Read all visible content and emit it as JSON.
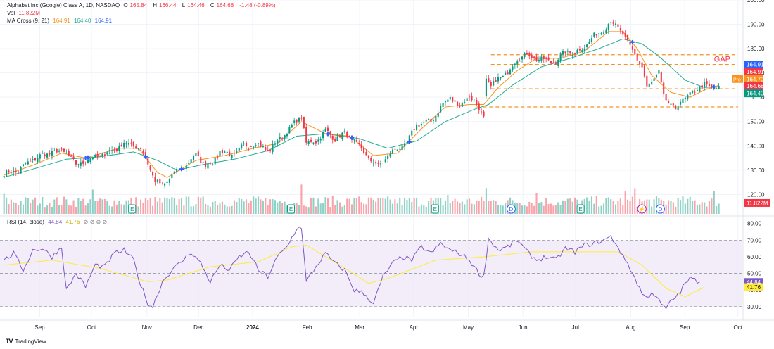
{
  "legend": {
    "title": "Alphabet Inc (Google) Class A, 1D, NASDAQ",
    "open_label": "O",
    "open": "165.84",
    "high_label": "H",
    "high": "166.44",
    "low_label": "L",
    "low": "164.46",
    "close_label": "C",
    "close": "164.68",
    "change": "-1.48 (-0.89%)",
    "vol_label": "Vol",
    "vol": "11.822M",
    "ma_label": "MA Cross (9, 21)",
    "ma_fast": "164.91",
    "ma_slow": "164.40",
    "ma_third": "164.91",
    "rsi_label": "RSI (14, close)",
    "rsi": "44.84",
    "rsi_ma": "41.76",
    "rsi_icons": "⊘ ⊘ ⊘ ⊘"
  },
  "watermark": {
    "logo": "TV",
    "text": "TradingView"
  },
  "chart_data": {
    "type": "candlestick",
    "price_axis": {
      "ylim": [
        112,
        200
      ],
      "ticks": [
        120,
        130,
        140,
        150,
        160,
        170,
        180,
        190,
        200
      ]
    },
    "rsi_axis": {
      "ylim": [
        24,
        82
      ],
      "ticks": [
        30,
        40,
        50,
        60,
        70,
        80
      ],
      "bands": [
        30,
        50,
        70
      ]
    },
    "x_ticks": [
      {
        "label": "Sep",
        "t": 0.05
      },
      {
        "label": "Oct",
        "t": 0.12
      },
      {
        "label": "Nov",
        "t": 0.195
      },
      {
        "label": "Dec",
        "t": 0.265
      },
      {
        "label": "2024",
        "t": 0.338
      },
      {
        "label": "Feb",
        "t": 0.412
      },
      {
        "label": "Mar",
        "t": 0.483
      },
      {
        "label": "Apr",
        "t": 0.556
      },
      {
        "label": "May",
        "t": 0.63
      },
      {
        "label": "Jun",
        "t": 0.704
      },
      {
        "label": "Jul",
        "t": 0.775
      },
      {
        "label": "Aug",
        "t": 0.85
      },
      {
        "label": "Sep",
        "t": 0.923
      },
      {
        "label": "Oct",
        "t": 0.995
      }
    ],
    "close_anchors": [
      [
        0,
        128.5
      ],
      [
        6,
        130
      ],
      [
        12,
        134.5
      ],
      [
        20,
        137.5
      ],
      [
        26,
        137.5
      ],
      [
        30,
        132
      ],
      [
        34,
        134
      ],
      [
        40,
        136
      ],
      [
        45,
        138
      ],
      [
        50,
        141
      ],
      [
        54,
        140.5
      ],
      [
        57,
        138.5
      ],
      [
        60,
        133
      ],
      [
        63,
        125.5
      ],
      [
        66,
        123.5
      ],
      [
        70,
        128
      ],
      [
        75,
        131
      ],
      [
        80,
        136.5
      ],
      [
        84,
        132
      ],
      [
        87,
        133
      ],
      [
        90,
        138
      ],
      [
        95,
        136
      ],
      [
        100,
        140
      ],
      [
        105,
        141
      ],
      [
        110,
        138
      ],
      [
        115,
        143
      ],
      [
        120,
        148
      ],
      [
        124,
        152.5
      ],
      [
        126,
        141
      ],
      [
        130,
        142
      ],
      [
        134,
        146
      ],
      [
        138,
        143
      ],
      [
        142,
        145
      ],
      [
        146,
        142
      ],
      [
        152,
        135
      ],
      [
        156,
        131.5
      ],
      [
        160,
        136
      ],
      [
        164,
        139
      ],
      [
        168,
        141
      ],
      [
        172,
        149
      ],
      [
        178,
        150
      ],
      [
        182,
        156
      ],
      [
        186,
        160
      ],
      [
        190,
        156
      ],
      [
        194,
        161
      ],
      [
        198,
        155
      ],
      [
        200,
        152
      ],
      [
        201,
        167.5
      ],
      [
        203,
        164
      ],
      [
        206,
        168
      ],
      [
        210,
        170
      ],
      [
        214,
        176
      ],
      [
        218,
        177.5
      ],
      [
        222,
        176
      ],
      [
        226,
        175
      ],
      [
        230,
        174.5
      ],
      [
        234,
        179
      ],
      [
        238,
        178
      ],
      [
        242,
        181
      ],
      [
        246,
        185
      ],
      [
        250,
        188
      ],
      [
        253,
        191
      ],
      [
        256,
        189
      ],
      [
        258,
        186
      ],
      [
        260,
        182
      ],
      [
        263,
        178
      ],
      [
        266,
        172
      ],
      [
        268,
        164
      ],
      [
        271,
        168
      ],
      [
        273,
        170
      ],
      [
        275,
        160
      ],
      [
        278,
        157
      ],
      [
        280,
        155
      ],
      [
        282,
        158
      ],
      [
        285,
        161
      ],
      [
        288,
        162
      ],
      [
        290,
        164
      ],
      [
        292,
        166
      ],
      [
        295,
        163
      ],
      [
        298,
        164.68
      ]
    ],
    "ma_fast_anchors": [
      [
        0,
        128
      ],
      [
        12,
        132
      ],
      [
        24,
        137
      ],
      [
        34,
        135
      ],
      [
        48,
        139
      ],
      [
        56,
        139
      ],
      [
        64,
        129
      ],
      [
        68,
        127
      ],
      [
        80,
        134
      ],
      [
        92,
        136
      ],
      [
        104,
        139
      ],
      [
        114,
        141
      ],
      [
        124,
        150
      ],
      [
        134,
        145
      ],
      [
        144,
        144
      ],
      [
        154,
        136
      ],
      [
        164,
        137
      ],
      [
        174,
        147
      ],
      [
        184,
        156
      ],
      [
        194,
        157
      ],
      [
        200,
        157
      ],
      [
        206,
        164
      ],
      [
        214,
        171
      ],
      [
        222,
        176
      ],
      [
        232,
        176
      ],
      [
        242,
        179
      ],
      [
        252,
        187
      ],
      [
        258,
        187
      ],
      [
        264,
        180
      ],
      [
        270,
        169
      ],
      [
        278,
        162
      ],
      [
        286,
        160
      ],
      [
        292,
        163
      ],
      [
        298,
        164.91
      ]
    ],
    "ma_slow_anchors": [
      [
        0,
        127
      ],
      [
        14,
        131
      ],
      [
        26,
        134.5
      ],
      [
        40,
        135.5
      ],
      [
        54,
        137.5
      ],
      [
        64,
        134
      ],
      [
        72,
        130
      ],
      [
        84,
        132.5
      ],
      [
        96,
        134.5
      ],
      [
        110,
        138
      ],
      [
        122,
        144
      ],
      [
        134,
        145
      ],
      [
        148,
        143
      ],
      [
        160,
        139
      ],
      [
        172,
        142
      ],
      [
        184,
        150
      ],
      [
        196,
        155
      ],
      [
        202,
        157
      ],
      [
        212,
        165
      ],
      [
        224,
        172.5
      ],
      [
        236,
        176
      ],
      [
        248,
        180
      ],
      [
        258,
        184
      ],
      [
        266,
        182
      ],
      [
        274,
        176
      ],
      [
        284,
        167
      ],
      [
        292,
        164
      ],
      [
        298,
        164.4
      ]
    ],
    "rsi_anchors": [
      [
        0,
        58
      ],
      [
        4,
        62
      ],
      [
        8,
        52
      ],
      [
        12,
        64
      ],
      [
        16,
        65
      ],
      [
        20,
        60
      ],
      [
        24,
        66
      ],
      [
        26,
        40
      ],
      [
        30,
        50
      ],
      [
        34,
        42
      ],
      [
        38,
        55
      ],
      [
        42,
        54
      ],
      [
        46,
        62
      ],
      [
        50,
        64
      ],
      [
        54,
        58
      ],
      [
        57,
        43
      ],
      [
        60,
        32
      ],
      [
        62,
        30
      ],
      [
        66,
        45
      ],
      [
        70,
        52
      ],
      [
        74,
        57
      ],
      [
        78,
        63
      ],
      [
        82,
        56
      ],
      [
        86,
        45
      ],
      [
        90,
        55
      ],
      [
        94,
        52
      ],
      [
        98,
        60
      ],
      [
        102,
        63
      ],
      [
        106,
        52
      ],
      [
        110,
        48
      ],
      [
        114,
        60
      ],
      [
        118,
        66
      ],
      [
        122,
        77
      ],
      [
        124,
        78
      ],
      [
        126,
        45
      ],
      [
        130,
        54
      ],
      [
        134,
        62
      ],
      [
        138,
        56
      ],
      [
        142,
        52
      ],
      [
        146,
        40
      ],
      [
        150,
        38
      ],
      [
        154,
        32
      ],
      [
        158,
        48
      ],
      [
        162,
        56
      ],
      [
        166,
        60
      ],
      [
        170,
        58
      ],
      [
        174,
        66
      ],
      [
        178,
        62
      ],
      [
        182,
        68
      ],
      [
        186,
        64
      ],
      [
        190,
        62
      ],
      [
        194,
        58
      ],
      [
        198,
        50
      ],
      [
        200,
        48
      ],
      [
        202,
        71
      ],
      [
        206,
        64
      ],
      [
        210,
        66
      ],
      [
        214,
        70
      ],
      [
        218,
        63
      ],
      [
        222,
        58
      ],
      [
        226,
        60
      ],
      [
        230,
        58
      ],
      [
        234,
        65
      ],
      [
        238,
        63
      ],
      [
        242,
        67
      ],
      [
        246,
        68
      ],
      [
        250,
        70
      ],
      [
        253,
        72
      ],
      [
        256,
        66
      ],
      [
        258,
        60
      ],
      [
        260,
        56
      ],
      [
        262,
        50
      ],
      [
        264,
        44
      ],
      [
        266,
        38
      ],
      [
        268,
        35
      ],
      [
        270,
        39
      ],
      [
        272,
        36
      ],
      [
        274,
        31
      ],
      [
        276,
        29
      ],
      [
        278,
        33
      ],
      [
        280,
        36
      ],
      [
        282,
        39
      ],
      [
        284,
        44
      ],
      [
        286,
        47
      ],
      [
        288,
        46
      ],
      [
        290,
        44.84
      ]
    ],
    "rsi_ma_anchors": [
      [
        0,
        55
      ],
      [
        20,
        58
      ],
      [
        40,
        53
      ],
      [
        60,
        45
      ],
      [
        68,
        46
      ],
      [
        86,
        54
      ],
      [
        106,
        57
      ],
      [
        120,
        66
      ],
      [
        126,
        67
      ],
      [
        140,
        55
      ],
      [
        152,
        44
      ],
      [
        160,
        47
      ],
      [
        180,
        58
      ],
      [
        200,
        60
      ],
      [
        220,
        63
      ],
      [
        240,
        63
      ],
      [
        256,
        63
      ],
      [
        266,
        55
      ],
      [
        276,
        41
      ],
      [
        284,
        36
      ],
      [
        292,
        41.76
      ]
    ],
    "gap_lines": [
      177.5,
      173.5,
      163.5,
      156
    ],
    "gap_label": "GAP",
    "axis_badges": [
      {
        "value": "164.91",
        "price": 173.5,
        "color": "#2962ff"
      },
      {
        "value": "164.91",
        "price": 170.5,
        "color": "#f23645"
      },
      {
        "value": "164.70",
        "price": 167.5,
        "color": "#f7931e"
      },
      {
        "value": "164.68",
        "price": 164.7,
        "color": "#f23645"
      },
      {
        "value": "164.40",
        "price": 161.6,
        "color": "#089981"
      },
      {
        "value": "11.822M",
        "price": 116.5,
        "color": "#f23645"
      }
    ],
    "pre_label": "Pre",
    "rsi_badges": [
      {
        "value": "44.84",
        "level": 44.84,
        "color": "#7e57c2"
      },
      {
        "value": "41.76",
        "level": 41.76,
        "color": "#ffeb3b",
        "text": "#131722"
      }
    ],
    "events": [
      {
        "label": "E",
        "t": 0.175
      },
      {
        "label": "E",
        "t": 0.39
      },
      {
        "label": "E",
        "t": 0.585
      },
      {
        "label": "D",
        "t": 0.688
      },
      {
        "label": "E",
        "t": 0.782
      },
      {
        "label": "⚡",
        "t": 0.865
      },
      {
        "label": "D",
        "t": 0.89
      }
    ],
    "colors": {
      "up": "#089981",
      "down": "#f23645",
      "ma_fast": "#f7931e",
      "ma_slow": "#22ab94",
      "rsi": "#7e57c2",
      "rsi_ma": "#ffeb3b",
      "band": "#ede7f6"
    }
  }
}
